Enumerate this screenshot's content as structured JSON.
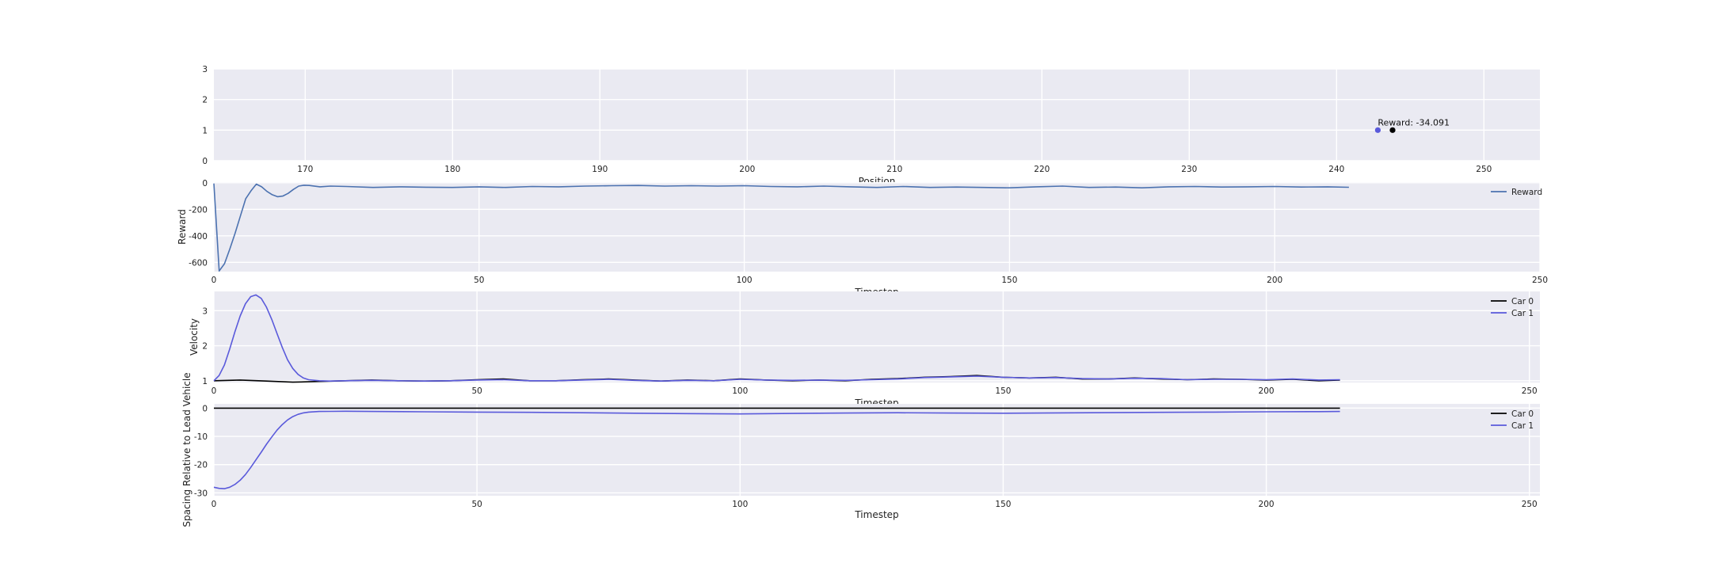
{
  "chart_data": [
    {
      "id": "position",
      "type": "scatter",
      "xlabel": "Position",
      "ylabel": "",
      "xlim": [
        163.8,
        253.8
      ],
      "ylim": [
        0,
        3
      ],
      "xticks": [
        170,
        180,
        190,
        200,
        210,
        220,
        230,
        240,
        250
      ],
      "yticks": [
        0,
        1,
        2,
        3
      ],
      "grid": true,
      "points": [
        {
          "x": 242.8,
          "y": 1,
          "color": "#5a5adb"
        },
        {
          "x": 243.8,
          "y": 1,
          "color": "#000000"
        }
      ],
      "annotation": {
        "text": "Reward: -34.091",
        "x": 242.8,
        "y": 1
      }
    },
    {
      "id": "reward",
      "type": "line",
      "xlabel": "Timestep",
      "ylabel": "Reward",
      "xlim": [
        0,
        250
      ],
      "ylim": [
        -670,
        5
      ],
      "xticks": [
        0,
        50,
        100,
        150,
        200,
        250
      ],
      "yticks": [
        0,
        -200,
        -400,
        -600
      ],
      "grid": true,
      "legend_position": "upper-right",
      "series": [
        {
          "name": "Reward",
          "color": "#4c72b0",
          "x": [
            0,
            1,
            2,
            3,
            4,
            5,
            6,
            7,
            8,
            9,
            10,
            11,
            12,
            13,
            14,
            15,
            16,
            17,
            18,
            20,
            22,
            25,
            30,
            35,
            40,
            45,
            50,
            55,
            60,
            65,
            70,
            75,
            80,
            85,
            90,
            95,
            100,
            105,
            110,
            115,
            120,
            125,
            130,
            135,
            140,
            145,
            150,
            155,
            160,
            165,
            170,
            175,
            180,
            185,
            190,
            195,
            200,
            205,
            210,
            214
          ],
          "values": [
            -5,
            -665,
            -610,
            -500,
            -380,
            -250,
            -120,
            -60,
            -10,
            -30,
            -65,
            -90,
            -105,
            -100,
            -80,
            -50,
            -25,
            -18,
            -20,
            -30,
            -25,
            -28,
            -35,
            -30,
            -33,
            -35,
            -30,
            -35,
            -28,
            -30,
            -25,
            -22,
            -20,
            -25,
            -22,
            -25,
            -22,
            -28,
            -30,
            -25,
            -30,
            -35,
            -28,
            -35,
            -32,
            -35,
            -38,
            -30,
            -25,
            -35,
            -32,
            -38,
            -30,
            -28,
            -32,
            -30,
            -28,
            -32,
            -30,
            -34
          ]
        }
      ]
    },
    {
      "id": "velocity",
      "type": "line",
      "xlabel": "Timestep",
      "ylabel": "Velocity",
      "xlim": [
        0,
        252
      ],
      "ylim": [
        0.95,
        3.55
      ],
      "xticks": [
        0,
        50,
        100,
        150,
        200,
        250
      ],
      "yticks": [
        1,
        2,
        3
      ],
      "grid": true,
      "legend_position": "upper-right",
      "series": [
        {
          "name": "Car 0",
          "color": "#000000",
          "x": [
            0,
            5,
            10,
            15,
            20,
            25,
            30,
            35,
            40,
            45,
            50,
            55,
            60,
            65,
            70,
            75,
            80,
            85,
            90,
            95,
            100,
            105,
            110,
            115,
            120,
            125,
            130,
            135,
            140,
            145,
            150,
            155,
            160,
            165,
            170,
            175,
            180,
            185,
            190,
            195,
            200,
            205,
            210,
            214
          ],
          "values": [
            1.0,
            1.02,
            0.99,
            0.96,
            0.98,
            1.0,
            1.02,
            1.0,
            0.99,
            1.0,
            1.03,
            1.05,
            1.0,
            1.0,
            1.03,
            1.05,
            1.02,
            0.99,
            1.02,
            1.0,
            1.05,
            1.02,
            1.0,
            1.02,
            1.0,
            1.04,
            1.06,
            1.1,
            1.12,
            1.15,
            1.1,
            1.08,
            1.1,
            1.05,
            1.05,
            1.08,
            1.05,
            1.03,
            1.05,
            1.04,
            1.02,
            1.04,
            1.0,
            1.02
          ]
        },
        {
          "name": "Car 1",
          "color": "#5a5adb",
          "x": [
            0,
            1,
            2,
            3,
            4,
            5,
            6,
            7,
            8,
            9,
            10,
            11,
            12,
            13,
            14,
            15,
            16,
            17,
            18,
            20,
            22,
            25,
            30,
            35,
            40,
            45,
            50,
            55,
            60,
            65,
            70,
            75,
            80,
            85,
            90,
            95,
            100,
            105,
            110,
            115,
            120,
            125,
            130,
            135,
            140,
            145,
            150,
            155,
            160,
            165,
            170,
            175,
            180,
            185,
            190,
            195,
            200,
            205,
            210,
            214
          ],
          "values": [
            1.0,
            1.15,
            1.45,
            1.9,
            2.4,
            2.85,
            3.2,
            3.4,
            3.45,
            3.35,
            3.1,
            2.75,
            2.35,
            1.95,
            1.6,
            1.35,
            1.18,
            1.08,
            1.03,
            1.0,
            0.99,
            1.0,
            1.01,
            1.0,
            0.99,
            1.0,
            1.02,
            1.03,
            1.0,
            1.0,
            1.02,
            1.04,
            1.01,
            0.99,
            1.01,
            1.0,
            1.04,
            1.02,
            1.01,
            1.02,
            1.01,
            1.03,
            1.05,
            1.09,
            1.11,
            1.13,
            1.1,
            1.08,
            1.09,
            1.06,
            1.05,
            1.07,
            1.06,
            1.03,
            1.04,
            1.04,
            1.03,
            1.05,
            1.02,
            1.03
          ]
        }
      ]
    },
    {
      "id": "spacing",
      "type": "line",
      "xlabel": "Timestep",
      "ylabel": "Spacing Relative to Lead Vehicle",
      "xlim": [
        0,
        252
      ],
      "ylim": [
        -31,
        1.5
      ],
      "xticks": [
        0,
        50,
        100,
        150,
        200,
        250
      ],
      "yticks": [
        0,
        -10,
        -20,
        -30
      ],
      "grid": true,
      "legend_position": "upper-right",
      "series": [
        {
          "name": "Car 0",
          "color": "#000000",
          "x": [
            0,
            214
          ],
          "values": [
            0,
            0
          ]
        },
        {
          "name": "Car 1",
          "color": "#5a5adb",
          "x": [
            0,
            1,
            2,
            3,
            4,
            5,
            6,
            7,
            8,
            9,
            10,
            11,
            12,
            13,
            14,
            15,
            16,
            17,
            18,
            20,
            22,
            25,
            30,
            40,
            50,
            60,
            70,
            80,
            90,
            100,
            110,
            120,
            130,
            140,
            150,
            160,
            170,
            180,
            190,
            200,
            210,
            214
          ],
          "values": [
            -28.0,
            -28.4,
            -28.5,
            -28.0,
            -27.0,
            -25.5,
            -23.5,
            -21.0,
            -18.3,
            -15.6,
            -12.8,
            -10.2,
            -7.8,
            -5.8,
            -4.2,
            -3.0,
            -2.2,
            -1.7,
            -1.4,
            -1.2,
            -1.15,
            -1.1,
            -1.2,
            -1.3,
            -1.4,
            -1.5,
            -1.65,
            -1.8,
            -1.95,
            -2.05,
            -1.9,
            -1.75,
            -1.65,
            -1.75,
            -1.8,
            -1.7,
            -1.6,
            -1.5,
            -1.4,
            -1.3,
            -1.25,
            -1.2
          ]
        }
      ]
    }
  ]
}
